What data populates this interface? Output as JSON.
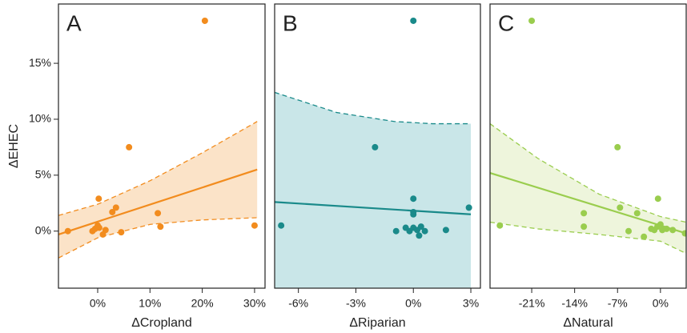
{
  "chart_data": [
    {
      "type": "scatter",
      "panel": "A",
      "x_label": "ΔCropland",
      "y_label": "ΔEHEC",
      "color": "#f28c1e",
      "band_color": "#fbe3c8",
      "x": [
        -5.7,
        -1,
        -0.5,
        0,
        0.3,
        1,
        1.5,
        0.2,
        2.8,
        3.5,
        4.5,
        6,
        11.5,
        12,
        20.5,
        30
      ],
      "y": [
        0,
        0,
        0.2,
        0.5,
        0.3,
        -0.3,
        0.1,
        2.9,
        1.7,
        2.1,
        -0.1,
        7.5,
        1.6,
        0.4,
        18.8,
        0.5
      ],
      "fit": {
        "x": [
          -7.5,
          30.5
        ],
        "y": [
          -0.3,
          5.5
        ]
      },
      "ci_upper": {
        "x": [
          -7.5,
          0,
          10,
          20,
          30.5
        ],
        "y": [
          1.4,
          2.4,
          4.5,
          7.0,
          9.8
        ]
      },
      "ci_lower": {
        "x": [
          -7.5,
          0,
          10,
          20,
          30.5
        ],
        "y": [
          -2.4,
          -0.6,
          0.6,
          1.0,
          1.2
        ]
      },
      "xlim": [
        -7.5,
        32
      ],
      "ylim": [
        -5.1,
        20.3
      ],
      "xticks": [
        {
          "value": 0,
          "label": "0%"
        },
        {
          "value": 10,
          "label": "10%"
        },
        {
          "value": 20,
          "label": "20%"
        },
        {
          "value": 30,
          "label": "30%"
        }
      ],
      "yticks": [
        {
          "value": 0,
          "label": "0%"
        },
        {
          "value": 5,
          "label": "5%"
        },
        {
          "value": 10,
          "label": "10%"
        },
        {
          "value": 15,
          "label": "15%"
        }
      ]
    },
    {
      "type": "scatter",
      "panel": "B",
      "x_label": "ΔRiparian",
      "color": "#1a8a8a",
      "band_color": "#c9e6e8",
      "x": [
        -6.9,
        -2,
        0,
        0,
        0,
        0,
        -0.9,
        -0.4,
        0,
        0.2,
        0.4,
        0.6,
        0.3,
        -0.2,
        1.7,
        2.9
      ],
      "y": [
        0.5,
        7.5,
        18.8,
        2.9,
        1.7,
        1.5,
        0,
        0.3,
        0.3,
        0.1,
        0.4,
        0,
        -0.4,
        0,
        0.1,
        2.1
      ],
      "fit": {
        "x": [
          -7.24,
          3
        ],
        "y": [
          2.6,
          1.5
        ]
      },
      "ci_upper": {
        "x": [
          -7.24,
          -4,
          -1,
          1,
          3
        ],
        "y": [
          12.4,
          10.6,
          9.8,
          9.6,
          9.6
        ]
      },
      "ci_lower": {
        "x": [
          -7.24,
          -4,
          -1,
          1,
          3
        ],
        "y": [
          -8,
          -7,
          -6.5,
          -6.5,
          -6.5
        ]
      },
      "xlim": [
        -7.24,
        3.5
      ],
      "ylim": [
        -5.1,
        20.3
      ],
      "xticks": [
        {
          "value": -6,
          "label": "-6%"
        },
        {
          "value": -3,
          "label": "-3%"
        },
        {
          "value": 0,
          "label": "0%"
        },
        {
          "value": 3,
          "label": "3%"
        }
      ]
    },
    {
      "type": "scatter",
      "panel": "C",
      "x_label": "ΔNatural",
      "color": "#9acd4e",
      "band_color": "#eef5dc",
      "x": [
        -26.2,
        -21,
        -7,
        -12.5,
        -12.5,
        -6.6,
        -3.8,
        -0.4,
        -2.7,
        -5.2,
        -1,
        -0.5,
        0,
        0.3,
        1,
        2,
        -1.5,
        4
      ],
      "y": [
        0.5,
        18.8,
        7.5,
        1.6,
        0.4,
        2.1,
        1.6,
        2.9,
        -0.5,
        0,
        0.1,
        0.4,
        0.6,
        0.1,
        0.2,
        0.1,
        0.2,
        -0.2
      ],
      "fit": {
        "x": [
          -27.8,
          4.2
        ],
        "y": [
          5.2,
          -0.2
        ]
      },
      "ci_upper": {
        "x": [
          -27.8,
          -20,
          -10,
          0,
          4.2
        ],
        "y": [
          9.6,
          6.5,
          3.3,
          1.3,
          0.8
        ]
      },
      "ci_lower": {
        "x": [
          -27.8,
          -20,
          -10,
          0,
          4.2
        ],
        "y": [
          0.8,
          0.2,
          -0.3,
          -0.9,
          -2.0
        ]
      },
      "xlim": [
        -27.8,
        4.2
      ],
      "ylim": [
        -5.1,
        20.3
      ],
      "xticks": [
        {
          "value": -21,
          "label": "-21%"
        },
        {
          "value": -14,
          "label": "-14%"
        },
        {
          "value": -7,
          "label": "-7%"
        },
        {
          "value": 0,
          "label": "0%"
        }
      ]
    }
  ]
}
